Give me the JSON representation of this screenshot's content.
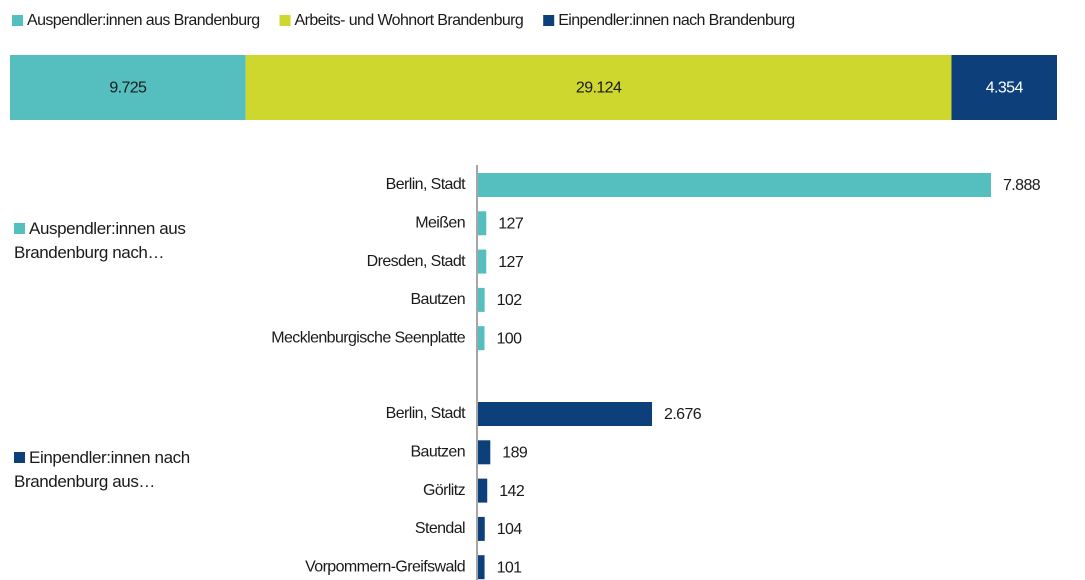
{
  "chart_data": [
    {
      "type": "stacked-bar",
      "series": [
        {
          "name": "Auspendler:innen aus Brandenburg",
          "color": "#55bfc0",
          "values": [
            9725
          ],
          "value_labels": [
            "9.725"
          ]
        },
        {
          "name": "Arbeits- und Wohnort Brandenburg",
          "color": "#cdd72d",
          "values": [
            29124
          ],
          "value_labels": [
            "29.124"
          ]
        },
        {
          "name": "Einpendler:innen nach Brandenburg",
          "color": "#0d3f7a",
          "values": [
            4354
          ],
          "value_labels": [
            "4.354"
          ]
        }
      ]
    },
    {
      "type": "bar",
      "groups": [
        {
          "name": "Auspendler:innen aus Brandenburg nach…",
          "color": "#55bfc0",
          "categories": [
            "Berlin, Stadt",
            "Meißen",
            "Dresden, Stadt",
            "Bautzen",
            "Mecklenburgische Seenplatte"
          ],
          "values": [
            7888,
            127,
            127,
            102,
            100
          ],
          "value_labels": [
            "7.888",
            "127",
            "127",
            "102",
            "100"
          ]
        },
        {
          "name": "Einpendler:innen nach Brandenburg aus…",
          "color": "#0d3f7a",
          "categories": [
            "Berlin, Stadt",
            "Bautzen",
            "Görlitz",
            "Stendal",
            "Vorpommern-Greifswald"
          ],
          "values": [
            2676,
            189,
            142,
            104,
            101
          ],
          "value_labels": [
            "2.676",
            "189",
            "142",
            "104",
            "101"
          ]
        }
      ]
    }
  ]
}
